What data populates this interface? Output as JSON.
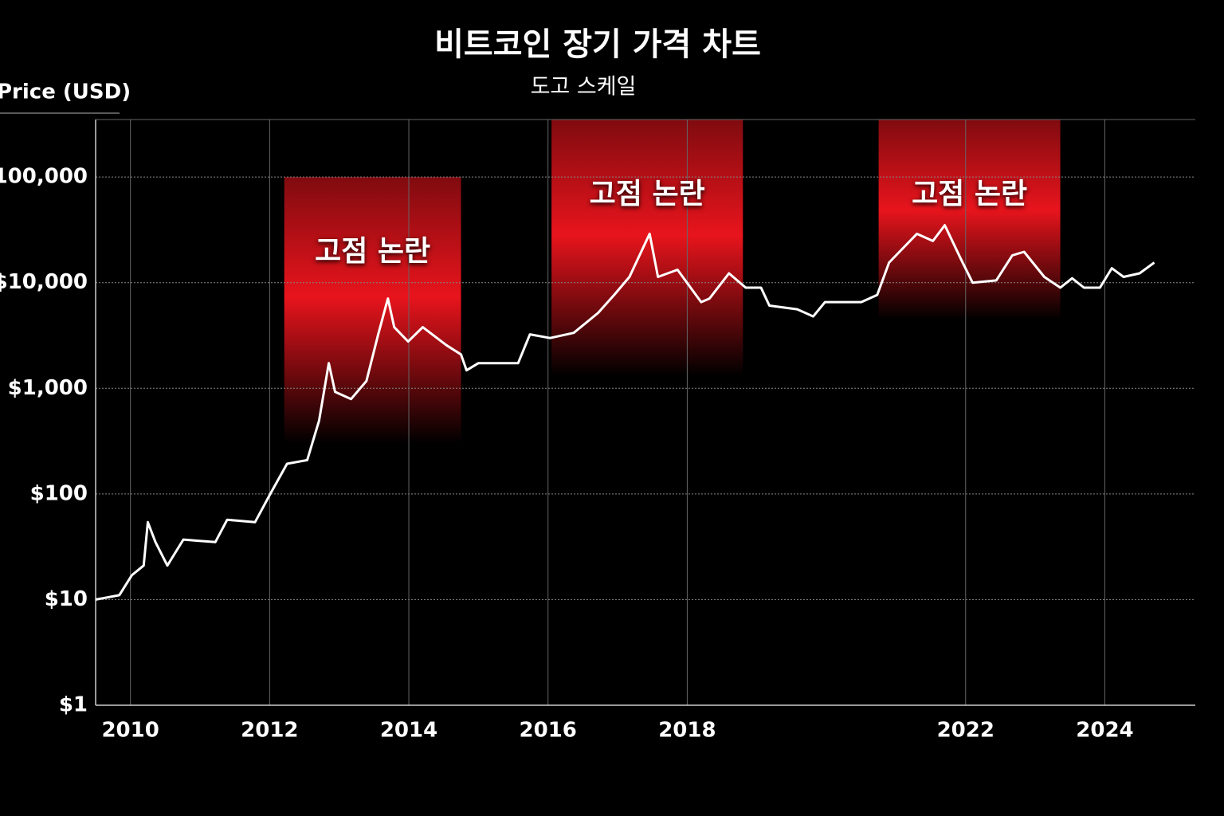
{
  "chart_data": {
    "type": "line",
    "title": "비트코인 장기 가격 차트",
    "subtitle": "도고 스케일",
    "y_label": "Price (USD)",
    "log_scale": true,
    "grid": true,
    "color": "#ffffff",
    "region_color": "#e8141c",
    "xlim": [
      2009.5,
      2025.3
    ],
    "xticks": [
      2010,
      2012,
      2014,
      2016,
      2018,
      2022,
      2024
    ],
    "ylim": [
      1,
      350000
    ],
    "yticks": [
      {
        "value": 1,
        "label": "$1"
      },
      {
        "value": 10,
        "label": "$10"
      },
      {
        "value": 100,
        "label": "$100"
      },
      {
        "value": 1000,
        "label": "$1,000"
      },
      {
        "value": 10000,
        "label": "$10,000"
      },
      {
        "value": 100000,
        "label": "100,000"
      }
    ],
    "x": [
      2009.5,
      2009.84,
      2010.02,
      2010.19,
      2010.25,
      2010.36,
      2010.53,
      2010.76,
      2011.22,
      2011.39,
      2011.79,
      2012.02,
      2012.25,
      2012.54,
      2012.71,
      2012.85,
      2012.94,
      2013.17,
      2013.39,
      2013.56,
      2013.7,
      2013.79,
      2013.99,
      2014.2,
      2014.54,
      2014.75,
      2014.83,
      2015.0,
      2015.57,
      2015.74,
      2016.03,
      2016.37,
      2016.72,
      2016.95,
      2017.17,
      2017.46,
      2017.58,
      2017.86,
      2018.2,
      2018.32,
      2018.6,
      2018.84,
      2019.06,
      2019.18,
      2019.58,
      2019.81,
      2019.98,
      2020.5,
      2020.73,
      2020.9,
      2021.3,
      2021.53,
      2021.7,
      2021.93,
      2022.1,
      2022.44,
      2022.67,
      2022.84,
      2023.13,
      2023.36,
      2023.53,
      2023.7,
      2023.93,
      2024.1,
      2024.27,
      2024.5,
      2024.71
    ],
    "values": [
      10,
      11,
      17,
      21,
      54,
      35,
      21,
      37,
      35,
      57,
      54,
      103,
      193,
      209,
      494,
      1730,
      924,
      791,
      1170,
      3240,
      7080,
      3790,
      2770,
      3790,
      2560,
      2090,
      1480,
      1730,
      1730,
      3240,
      2990,
      3350,
      5180,
      7660,
      11340,
      29000,
      11340,
      13260,
      6550,
      7080,
      12250,
      8960,
      8960,
      6060,
      5600,
      4790,
      6550,
      6550,
      7660,
      15500,
      29000,
      24800,
      35000,
      16800,
      10000,
      10500,
      18100,
      19600,
      11340,
      8960,
      11000,
      8960,
      8960,
      13700,
      11340,
      12250,
      15500
    ],
    "regions": [
      {
        "label": "고점 논란",
        "x": [
          2012.21,
          2014.75
        ],
        "y": [
          300,
          100000
        ]
      },
      {
        "label": "고점 논란",
        "x": [
          2016.05,
          2018.8
        ],
        "y": [
          1300,
          350000
        ]
      },
      {
        "label": "고점 논란",
        "x": [
          2020.75,
          2023.36
        ],
        "y": [
          4400,
          350000
        ]
      }
    ]
  }
}
